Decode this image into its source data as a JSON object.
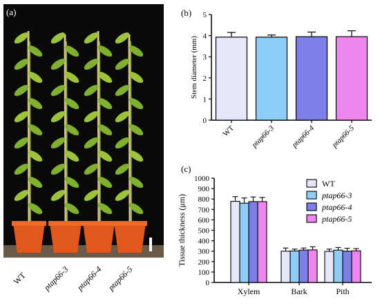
{
  "panel_a": {
    "label": "(a)",
    "plants": [
      "WT",
      "ptap66-3",
      "ptap66-4",
      "ptap66-5"
    ]
  },
  "colors": {
    "WT": "#e6e6fb",
    "ptap66-3": "#8ecdf7",
    "ptap66-4": "#7b7fe6",
    "ptap66-5": "#ee86ee"
  },
  "chart_data": [
    {
      "panel": "(b)",
      "type": "bar",
      "categories": [
        "WT",
        "ptap66-3",
        "ptap66-4",
        "ptap66-5"
      ],
      "values": [
        3.93,
        3.93,
        3.95,
        3.95
      ],
      "errors": [
        0.22,
        0.1,
        0.22,
        0.28
      ],
      "ylabel": "Stem diameter (mm)",
      "ylim": [
        0,
        5
      ],
      "yticks": [
        "0",
        "1",
        "2",
        "3",
        "4",
        "5"
      ],
      "grid": false
    },
    {
      "panel": "(c)",
      "type": "bar",
      "categories": [
        "Xylem",
        "Bark",
        "Pith"
      ],
      "series": [
        {
          "name": "WT",
          "values": [
            778,
            300,
            298
          ],
          "errors": [
            45,
            30,
            22
          ]
        },
        {
          "name": "ptap66-3",
          "values": [
            760,
            302,
            310
          ],
          "errors": [
            50,
            18,
            25
          ]
        },
        {
          "name": "ptap66-4",
          "values": [
            775,
            310,
            300
          ],
          "errors": [
            45,
            20,
            28
          ]
        },
        {
          "name": "ptap66-5",
          "values": [
            775,
            312,
            303
          ],
          "errors": [
            40,
            30,
            22
          ]
        }
      ],
      "ylabel": "Tissue thickness (μm)",
      "ylim": [
        0,
        1000
      ],
      "yticks": [
        "0",
        "100",
        "200",
        "300",
        "400",
        "500",
        "600",
        "700",
        "800",
        "900",
        "1000"
      ],
      "legend": "top-right",
      "grid": false
    }
  ]
}
